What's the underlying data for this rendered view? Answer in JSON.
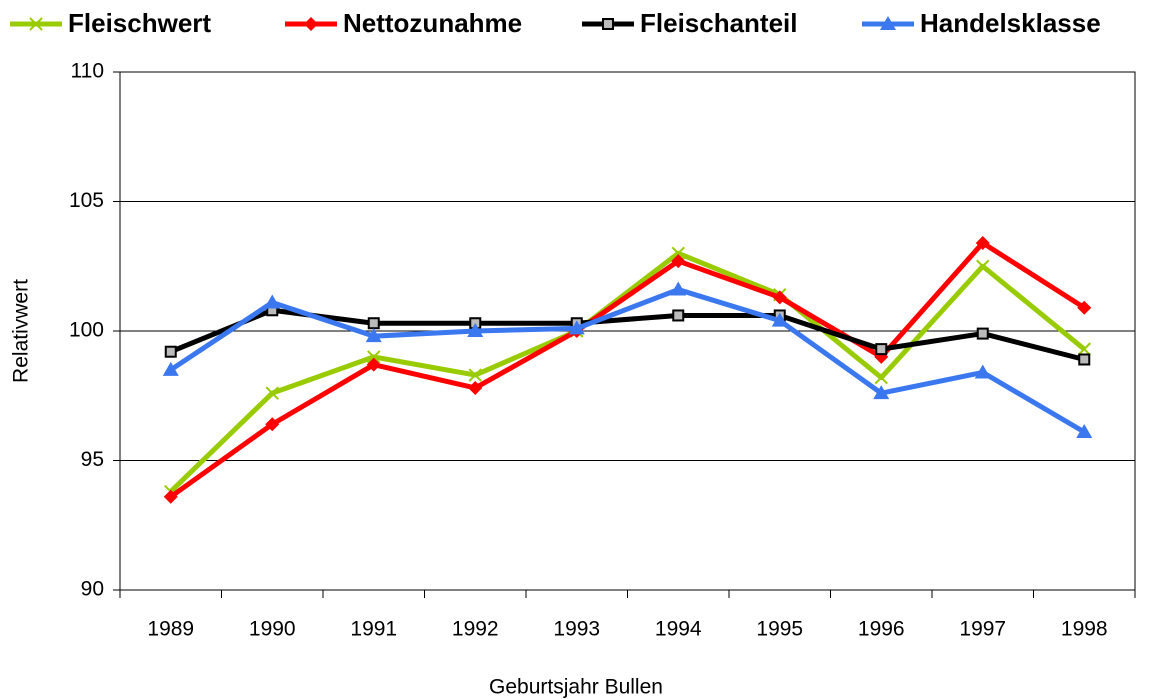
{
  "chart_data": {
    "type": "line",
    "x_label": "Geburtsjahr Bullen",
    "y_label": "Relativwert",
    "categories": [
      "1989",
      "1990",
      "1991",
      "1992",
      "1993",
      "1994",
      "1995",
      "1996",
      "1997",
      "1998"
    ],
    "series": [
      {
        "name": "Fleischwert",
        "color": "#99cc00",
        "marker": "x",
        "values": [
          93.8,
          97.6,
          99.0,
          98.3,
          100.0,
          103.0,
          101.4,
          98.2,
          102.5,
          99.3
        ]
      },
      {
        "name": "Nettozunahme",
        "color": "#ff0000",
        "marker": "diamond",
        "values": [
          93.6,
          96.4,
          98.7,
          97.8,
          100.0,
          102.7,
          101.3,
          99.0,
          103.4,
          100.9
        ]
      },
      {
        "name": "Fleischanteil",
        "color": "#000000",
        "marker": "square",
        "values": [
          99.2,
          100.8,
          100.3,
          100.3,
          100.3,
          100.6,
          100.6,
          99.3,
          99.9,
          98.9
        ]
      },
      {
        "name": "Handelsklasse",
        "color": "#3b78f0",
        "marker": "triangle",
        "values": [
          98.5,
          101.1,
          99.8,
          100.0,
          100.1,
          101.6,
          100.4,
          97.6,
          98.4,
          96.1
        ]
      }
    ],
    "ylim": [
      90,
      110
    ],
    "yticks": [
      90,
      95,
      100,
      105,
      110
    ],
    "grid": true,
    "legend": "top"
  }
}
